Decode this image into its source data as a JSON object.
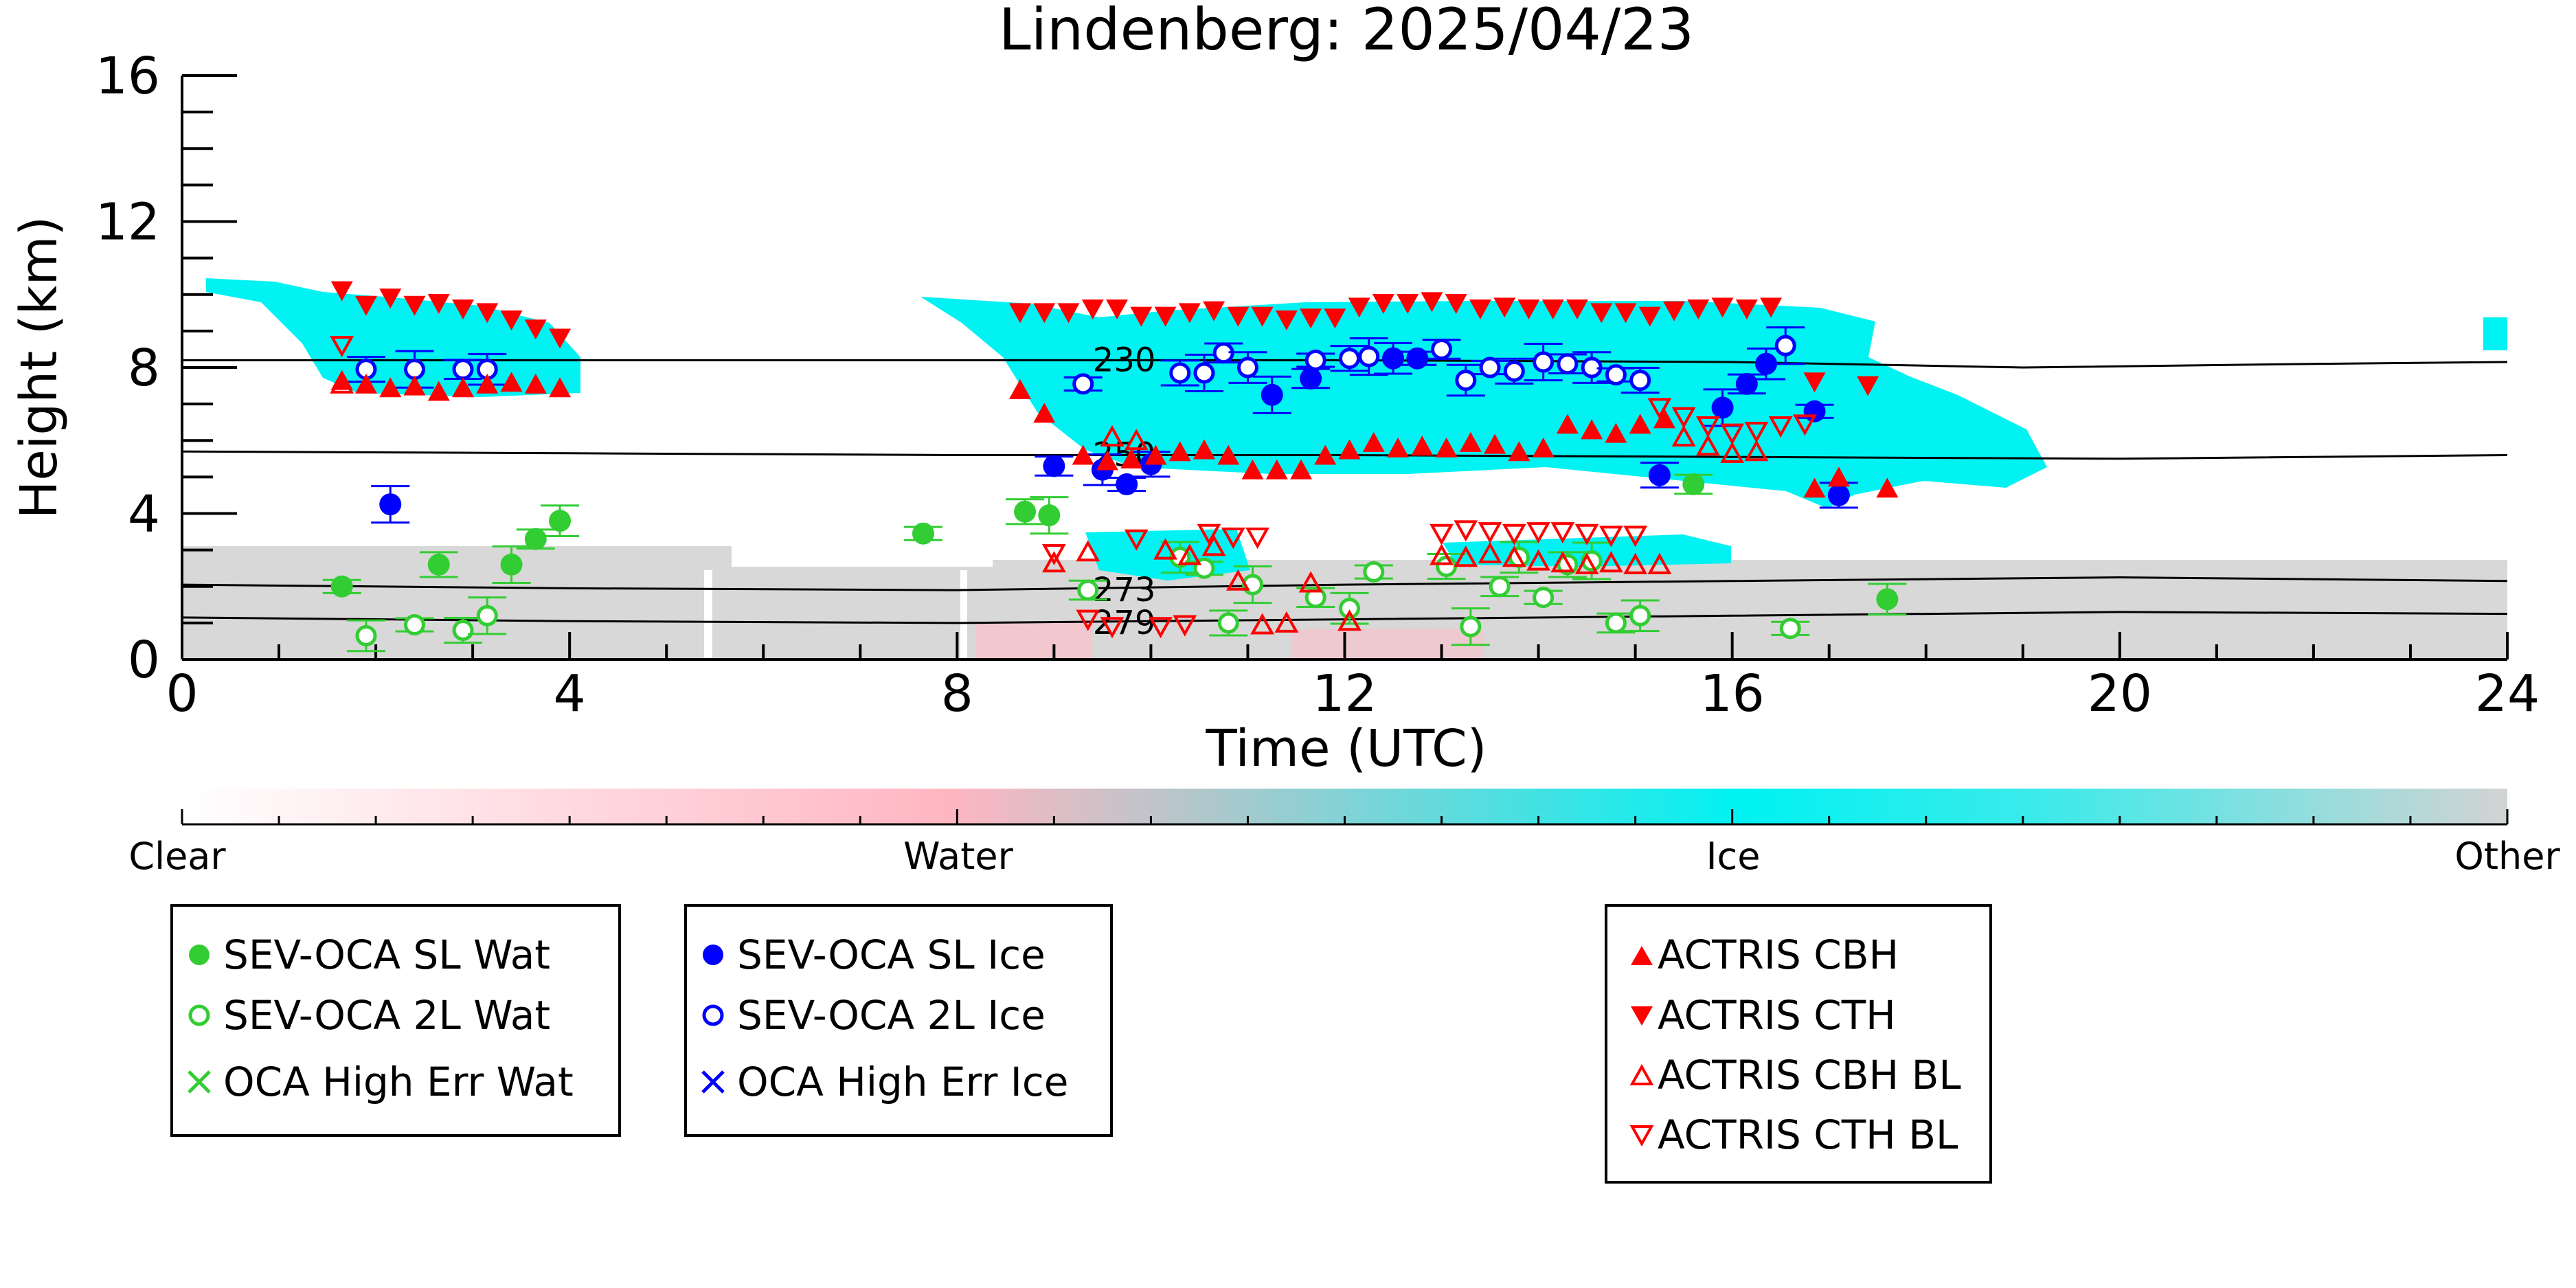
{
  "chart_data": {
    "type": "scatter",
    "title": "Lindenberg: 2025/04/23",
    "xlabel": "Time (UTC)",
    "ylabel": "Height (km)",
    "xlim": [
      0,
      24
    ],
    "ylim": [
      0,
      16
    ],
    "xticks": [
      0,
      4,
      8,
      12,
      16,
      20,
      24
    ],
    "yticks": [
      0,
      4,
      8,
      12,
      16
    ],
    "grid": false,
    "colorbar": {
      "labels": [
        "Clear",
        "Water",
        "Ice",
        "Other"
      ],
      "colors": [
        "#ffffff",
        "#ffb6c1",
        "#00ffff",
        "#d3d3d3"
      ]
    },
    "temperature_contours": [
      {
        "label": "230",
        "points": [
          [
            0,
            8.2
          ],
          [
            4,
            8.2
          ],
          [
            8,
            8.2
          ],
          [
            12,
            8.2
          ],
          [
            16,
            8.15
          ],
          [
            19,
            8.0
          ],
          [
            22,
            8.1
          ],
          [
            24,
            8.15
          ]
        ]
      },
      {
        "label": "250",
        "points": [
          [
            0,
            5.7
          ],
          [
            4,
            5.65
          ],
          [
            8,
            5.6
          ],
          [
            12,
            5.6
          ],
          [
            16,
            5.55
          ],
          [
            20,
            5.5
          ],
          [
            24,
            5.6
          ]
        ]
      },
      {
        "label": "273",
        "points": [
          [
            0,
            2.05
          ],
          [
            4,
            1.95
          ],
          [
            8,
            1.9
          ],
          [
            12,
            2.05
          ],
          [
            16,
            2.15
          ],
          [
            20,
            2.25
          ],
          [
            24,
            2.15
          ]
        ]
      },
      {
        "label": "279",
        "points": [
          [
            0,
            1.15
          ],
          [
            4,
            1.05
          ],
          [
            8,
            1.0
          ],
          [
            12,
            1.1
          ],
          [
            16,
            1.2
          ],
          [
            20,
            1.3
          ],
          [
            24,
            1.25
          ]
        ]
      }
    ],
    "series": [
      {
        "name": "SEV-OCA SL Wat",
        "marker": "filled-circle",
        "color": "#32cd32",
        "x": [
          1.65,
          2.65,
          3.4,
          3.65,
          3.9,
          7.65,
          8.7,
          8.95,
          15.6,
          17.6
        ],
        "y": [
          2.0,
          2.6,
          2.6,
          3.3,
          3.8,
          3.45,
          4.05,
          3.95,
          4.8,
          1.65
        ]
      },
      {
        "name": "SEV-OCA 2L Wat",
        "marker": "open-circle",
        "color": "#32cd32",
        "x": [
          1.9,
          2.4,
          2.9,
          3.15,
          9.35,
          10.3,
          10.55,
          10.8,
          11.05,
          11.7,
          12.05,
          12.3,
          13.05,
          13.3,
          13.6,
          13.8,
          14.05,
          14.3,
          14.55,
          14.8,
          15.05,
          16.6
        ],
        "y": [
          0.65,
          0.95,
          0.8,
          1.2,
          1.9,
          2.8,
          2.5,
          1.0,
          2.05,
          1.7,
          1.4,
          2.4,
          2.55,
          0.9,
          2.0,
          2.8,
          1.7,
          2.6,
          2.7,
          1.0,
          1.2,
          0.85
        ]
      },
      {
        "name": "OCA High Err Wat",
        "marker": "x",
        "color": "#32cd32",
        "x": [],
        "y": []
      },
      {
        "name": "SEV-OCA SL Ice",
        "marker": "filled-circle",
        "color": "#0000ff",
        "x": [
          2.15,
          9.0,
          9.5,
          9.75,
          10.0,
          11.25,
          11.65,
          12.5,
          12.75,
          15.25,
          15.9,
          16.15,
          16.35,
          16.85,
          17.1
        ],
        "y": [
          4.25,
          5.3,
          5.2,
          4.8,
          5.35,
          7.25,
          7.7,
          8.25,
          8.25,
          5.05,
          6.9,
          7.55,
          8.1,
          6.8,
          4.5
        ]
      },
      {
        "name": "SEV-OCA 2L Ice",
        "marker": "open-circle",
        "color": "#0000ff",
        "x": [
          1.9,
          2.4,
          2.9,
          3.15,
          9.3,
          10.3,
          10.55,
          10.75,
          11.0,
          11.7,
          12.05,
          12.25,
          13.0,
          13.25,
          13.5,
          13.75,
          14.05,
          14.3,
          14.55,
          14.8,
          15.05,
          16.55
        ],
        "y": [
          7.95,
          7.95,
          7.95,
          7.95,
          7.55,
          7.85,
          7.85,
          8.4,
          8.0,
          8.2,
          8.25,
          8.3,
          8.5,
          7.65,
          8.0,
          7.9,
          8.15,
          8.1,
          8.0,
          7.8,
          7.65,
          8.6
        ]
      },
      {
        "name": "OCA High Err Ice",
        "marker": "x",
        "color": "#0000ff",
        "x": [],
        "y": []
      },
      {
        "name": "ACTRIS CBH",
        "marker": "filled-triangle-up",
        "color": "#ff0000",
        "x": [
          1.65,
          1.9,
          2.15,
          2.4,
          2.65,
          2.9,
          3.15,
          3.4,
          3.65,
          3.9,
          8.65,
          8.9,
          9.3,
          9.55,
          9.8,
          10.05,
          10.3,
          10.55,
          10.8,
          11.05,
          11.3,
          11.55,
          11.8,
          12.05,
          12.3,
          12.55,
          12.8,
          13.05,
          13.3,
          13.55,
          13.8,
          14.05,
          14.3,
          14.55,
          14.8,
          15.05,
          15.3,
          16.85,
          17.1,
          17.6
        ],
        "y": [
          7.65,
          7.55,
          7.45,
          7.5,
          7.35,
          7.45,
          7.55,
          7.6,
          7.55,
          7.45,
          7.4,
          6.75,
          5.6,
          5.45,
          5.5,
          5.6,
          5.7,
          5.75,
          5.6,
          5.2,
          5.2,
          5.2,
          5.6,
          5.75,
          5.95,
          5.8,
          5.85,
          5.8,
          5.95,
          5.9,
          5.7,
          5.8,
          6.45,
          6.3,
          6.2,
          6.45,
          6.6,
          4.7,
          5.0,
          4.7
        ]
      },
      {
        "name": "ACTRIS CTH",
        "marker": "filled-triangle-down",
        "color": "#ff0000",
        "x": [
          1.65,
          1.9,
          2.15,
          2.4,
          2.65,
          2.9,
          3.15,
          3.4,
          3.65,
          3.9,
          8.65,
          8.9,
          9.15,
          9.4,
          9.65,
          9.9,
          10.15,
          10.4,
          10.65,
          10.9,
          11.15,
          11.4,
          11.65,
          11.9,
          12.15,
          12.4,
          12.65,
          12.9,
          13.15,
          13.4,
          13.65,
          13.9,
          14.15,
          14.4,
          14.65,
          14.9,
          15.15,
          15.4,
          15.65,
          15.9,
          16.15,
          16.4,
          16.85,
          17.4
        ],
        "y": [
          10.1,
          9.7,
          9.9,
          9.7,
          9.75,
          9.6,
          9.5,
          9.3,
          9.05,
          8.8,
          9.5,
          9.5,
          9.5,
          9.6,
          9.6,
          9.4,
          9.4,
          9.5,
          9.55,
          9.4,
          9.4,
          9.3,
          9.35,
          9.35,
          9.65,
          9.75,
          9.75,
          9.8,
          9.75,
          9.6,
          9.65,
          9.6,
          9.6,
          9.6,
          9.5,
          9.5,
          9.4,
          9.55,
          9.6,
          9.65,
          9.6,
          9.65,
          7.6,
          7.5
        ]
      },
      {
        "name": "ACTRIS CBH BL",
        "marker": "open-triangle-up",
        "color": "#ff0000",
        "x": [
          1.65,
          9.0,
          9.35,
          9.6,
          9.85,
          10.15,
          10.4,
          10.65,
          10.9,
          11.15,
          11.4,
          11.65,
          12.05,
          13.0,
          13.25,
          13.5,
          13.75,
          14.0,
          14.25,
          14.5,
          14.75,
          15.0,
          15.25,
          15.5,
          15.75,
          16.0,
          16.25
        ],
        "y": [
          7.55,
          2.65,
          2.95,
          6.1,
          6.0,
          3.0,
          2.85,
          3.1,
          2.15,
          0.95,
          1.0,
          2.1,
          1.05,
          2.85,
          2.8,
          2.9,
          2.8,
          2.7,
          2.65,
          2.6,
          2.65,
          2.6,
          2.6,
          6.1,
          5.85,
          5.65,
          5.7
        ]
      },
      {
        "name": "ACTRIS CTH BL",
        "marker": "open-triangle-down",
        "color": "#ff0000",
        "x": [
          1.65,
          9.0,
          9.35,
          9.6,
          9.85,
          10.1,
          10.35,
          10.6,
          10.85,
          11.1,
          13.0,
          13.25,
          13.5,
          13.75,
          14.0,
          14.25,
          14.5,
          14.75,
          15.0,
          15.25,
          15.5,
          15.75,
          16.0,
          16.25,
          16.5,
          16.75
        ],
        "y": [
          8.6,
          2.9,
          1.1,
          0.9,
          3.3,
          0.9,
          0.95,
          3.45,
          3.35,
          3.35,
          3.45,
          3.55,
          3.5,
          3.45,
          3.5,
          3.5,
          3.45,
          3.4,
          3.4,
          6.9,
          6.65,
          6.4,
          6.2,
          6.25,
          6.4,
          6.45
        ]
      }
    ]
  }
}
